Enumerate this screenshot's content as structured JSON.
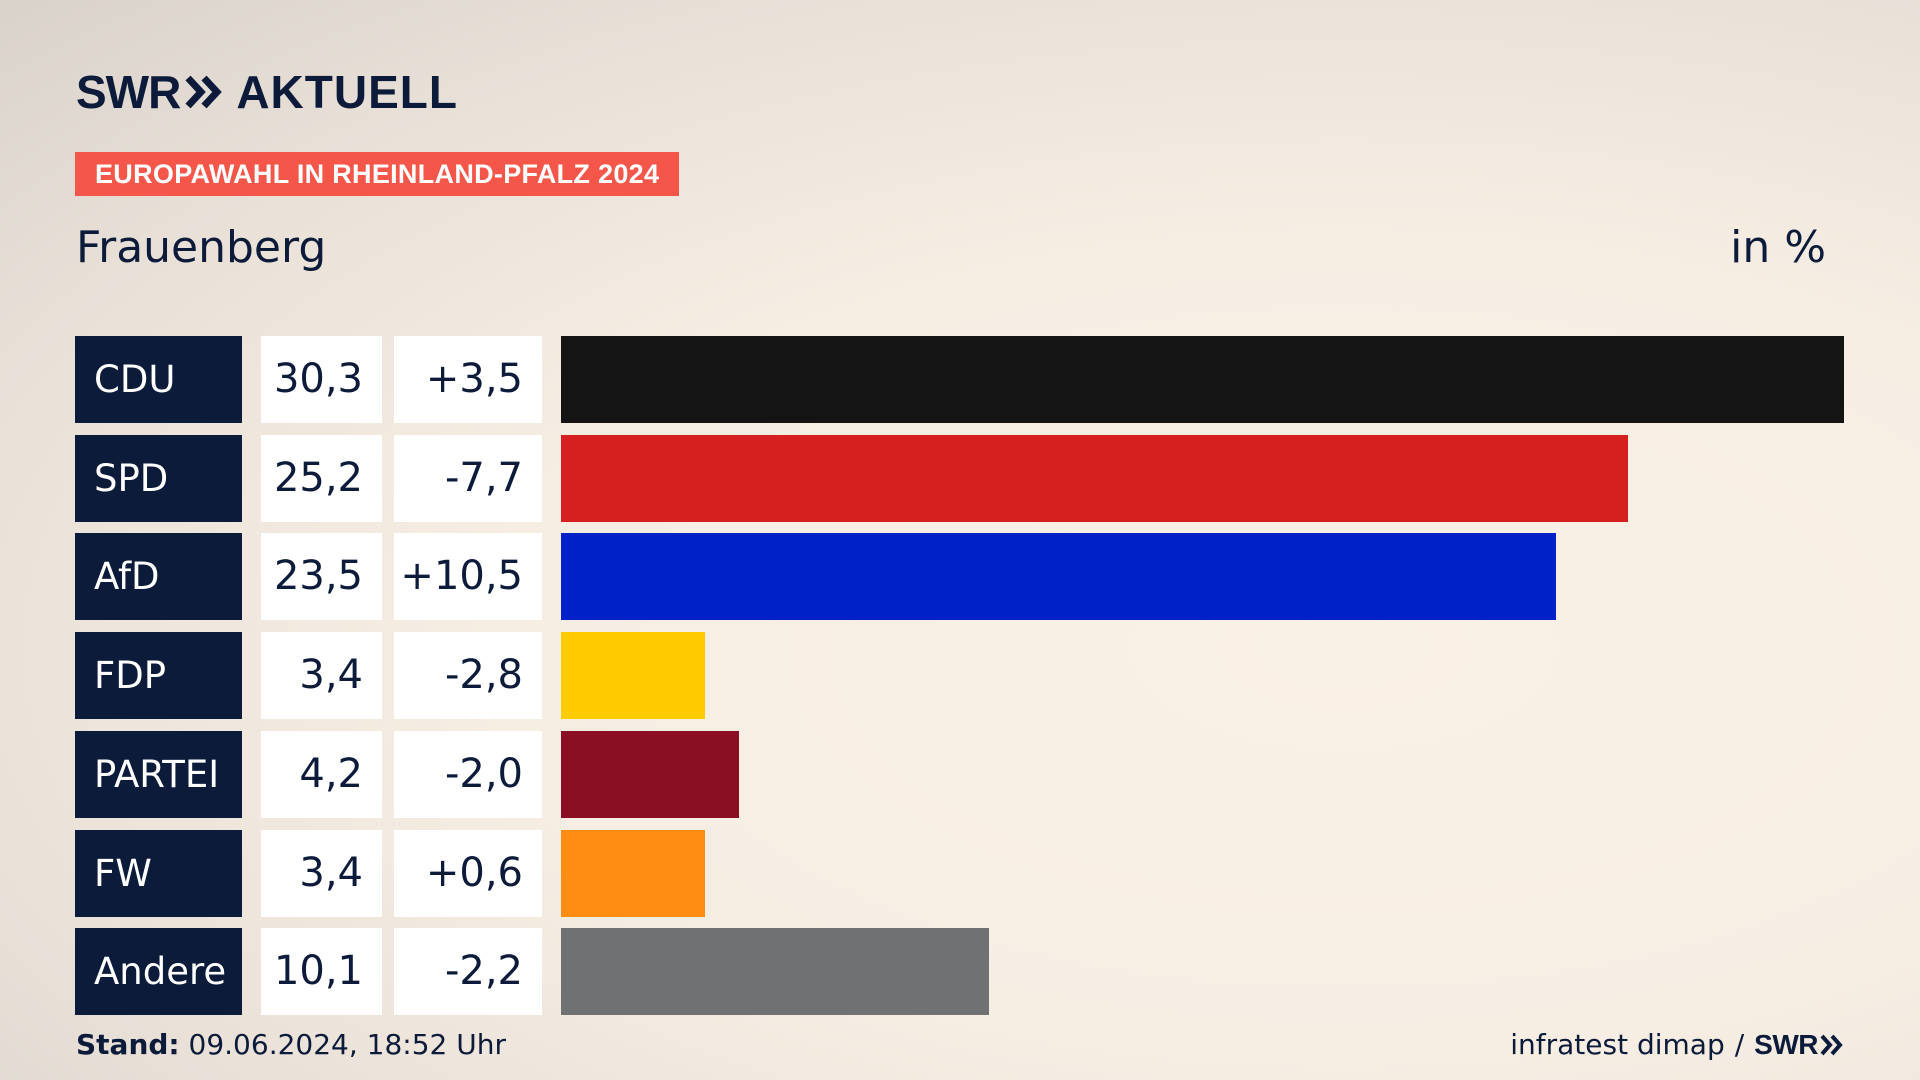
{
  "brand": {
    "swr": "SWR",
    "aktuell": "AKTUELL"
  },
  "badge": "EUROPAWAHL IN RHEINLAND-PFALZ 2024",
  "subtitle": "Frauenberg",
  "unit": "in %",
  "chart_data": {
    "type": "bar",
    "orientation": "horizontal",
    "categories": [
      "CDU",
      "SPD",
      "AfD",
      "FDP",
      "PARTEI",
      "FW",
      "Andere"
    ],
    "values": [
      30.3,
      25.2,
      23.5,
      3.4,
      4.2,
      3.4,
      10.1
    ],
    "values_display": [
      "30,3",
      "25,2",
      "23,5",
      "3,4",
      "4,2",
      "3,4",
      "10,1"
    ],
    "changes": [
      3.5,
      -7.7,
      10.5,
      -2.8,
      -2.0,
      0.6,
      -2.2
    ],
    "changes_display": [
      "+3,5",
      "-7,7",
      "+10,5",
      "-2,8",
      "-2,0",
      "+0,6",
      "-2,2"
    ],
    "colors": [
      "#141414",
      "#d62020",
      "#0020c8",
      "#ffcc00",
      "#8b0f22",
      "#ff8c13",
      "#707172"
    ],
    "xlim": [
      0,
      30.3
    ],
    "grid": false,
    "legend": "none"
  },
  "footer": {
    "stand_label": "Stand:",
    "stand_value": "09.06.2024, 18:52 Uhr",
    "source": "infratest dimap",
    "separator": "/",
    "swr": "SWR"
  }
}
